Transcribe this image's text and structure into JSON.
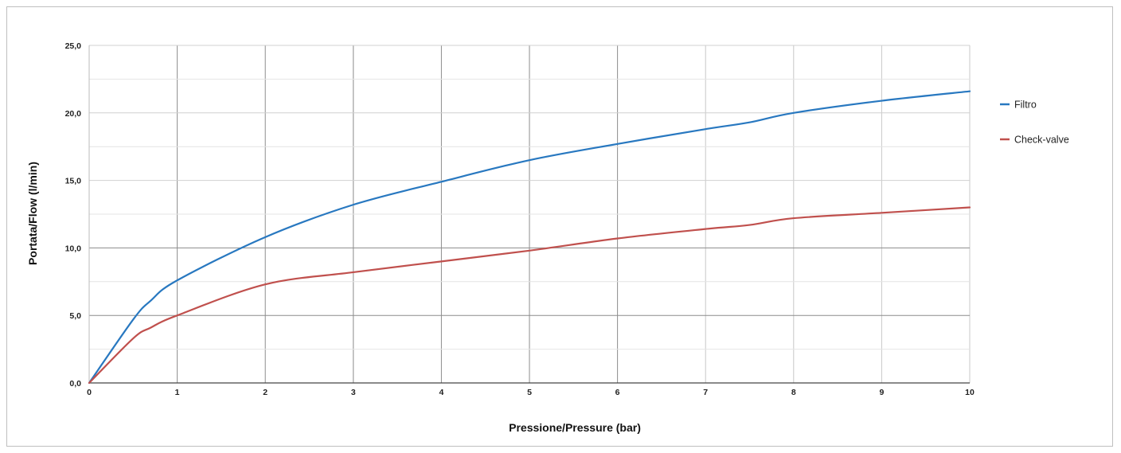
{
  "chart_data": {
    "type": "line",
    "title": "",
    "xlabel": "Pressione/Pressure (bar)",
    "ylabel": "Portata/Flow (l/min)",
    "xlim": [
      0,
      10
    ],
    "ylim": [
      0,
      25
    ],
    "x_ticks": [
      "0",
      "1",
      "2",
      "3",
      "4",
      "5",
      "6",
      "7",
      "8",
      "9",
      "10"
    ],
    "y_ticks": [
      "0,0",
      "5,0",
      "10,0",
      "15,0",
      "20,0",
      "25,0"
    ],
    "grid": true,
    "legend_position": "right",
    "x": [
      0,
      0.5,
      0.7,
      1,
      2,
      3,
      4,
      5,
      6,
      7,
      7.5,
      8,
      9,
      10
    ],
    "series": [
      {
        "name": "Filtro",
        "color": "#2878c0",
        "values": [
          0,
          4.7,
          6.1,
          7.6,
          10.8,
          13.2,
          14.9,
          16.5,
          17.7,
          18.8,
          19.3,
          20.0,
          20.9,
          21.6
        ]
      },
      {
        "name": "Check-valve",
        "color": "#c0504d",
        "values": [
          0,
          3.3,
          4.1,
          5.0,
          7.3,
          8.2,
          9.0,
          9.8,
          10.7,
          11.4,
          11.7,
          12.2,
          12.6,
          13.0
        ]
      }
    ]
  }
}
